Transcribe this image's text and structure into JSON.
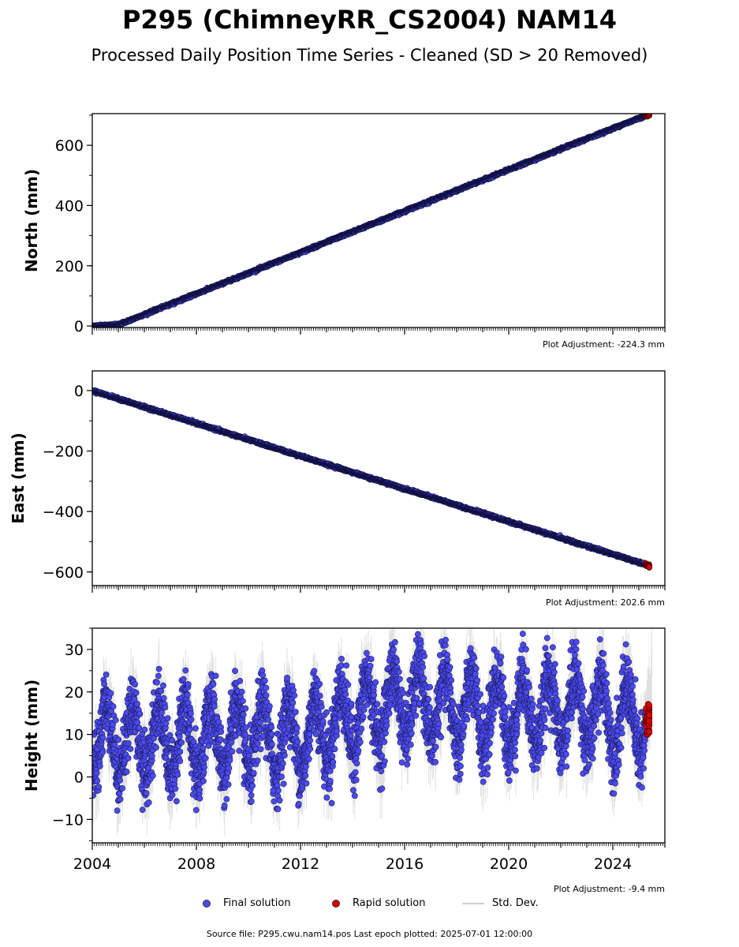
{
  "header": {
    "title": "P295 (ChimneyRR_CS2004) NAM14",
    "subtitle": "Processed Daily Position Time Series - Cleaned (SD > 20 Removed)"
  },
  "chart_data": [
    {
      "type": "scatter",
      "ylabel": "North (mm)",
      "xlim": [
        2004.0,
        2026.0
      ],
      "ylim": [
        -5,
        705
      ],
      "yticks": [
        0,
        200,
        400,
        600
      ],
      "ytick_labels": [
        "0",
        "200",
        "400",
        "600"
      ],
      "adjustment": "Plot Adjustment: -224.3 mm",
      "trend": [
        [
          2004.0,
          0
        ],
        [
          2005.0,
          4
        ],
        [
          2025.0,
          690
        ],
        [
          2025.5,
          704
        ]
      ],
      "noise": 2,
      "final_color": "#4a4aee",
      "rapid_color": "#e00000"
    },
    {
      "type": "scatter",
      "ylabel": "East (mm)",
      "xlim": [
        2004.0,
        2026.0
      ],
      "ylim": [
        -645,
        65
      ],
      "yticks": [
        0,
        -200,
        -400,
        -600
      ],
      "ytick_labels": [
        "0",
        "−200",
        "−400",
        "−600"
      ],
      "adjustment": "Plot Adjustment: 202.6 mm",
      "trend": [
        [
          2004.0,
          0
        ],
        [
          2025.5,
          -582
        ]
      ],
      "noise": 2,
      "final_color": "#4a4aee",
      "rapid_color": "#e00000"
    },
    {
      "type": "scatter",
      "ylabel": "Height (mm)",
      "xlim": [
        2004.0,
        2026.0
      ],
      "ylim": [
        -15.5,
        35
      ],
      "yticks": [
        -10,
        0,
        10,
        20,
        30
      ],
      "ytick_labels": [
        "−10",
        "0",
        "10",
        "20",
        "30"
      ],
      "xticks": [
        2004,
        2008,
        2012,
        2016,
        2020,
        2024
      ],
      "xtick_labels": [
        "2004",
        "2008",
        "2012",
        "2016",
        "2020",
        "2024"
      ],
      "adjustment": "Plot Adjustment: -9.4 mm",
      "baseline": [
        [
          2004.0,
          9
        ],
        [
          2012.0,
          9
        ],
        [
          2014.0,
          14
        ],
        [
          2016.0,
          18
        ],
        [
          2019.0,
          15
        ],
        [
          2023.0,
          16
        ],
        [
          2025.5,
          12
        ]
      ],
      "seasonal_amplitude": 8,
      "noise": 4,
      "final_color": "#4a4aee",
      "rapid_color": "#e00000"
    }
  ],
  "legend": {
    "final": "Final solution",
    "rapid": "Rapid solution",
    "std": "Std. Dev."
  },
  "footer": {
    "source": "Source file: P295.cwu.nam14.pos  Last epoch plotted: 2025-07-01 12:00:00"
  }
}
